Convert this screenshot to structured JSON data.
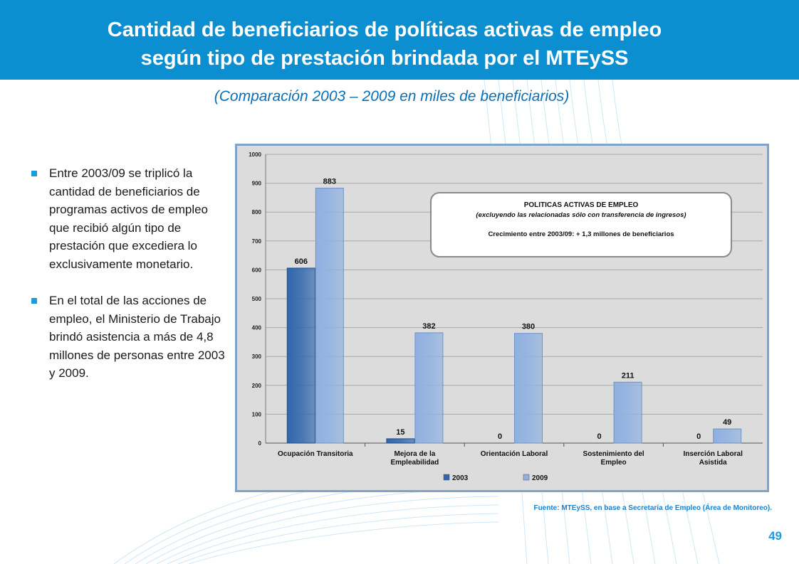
{
  "slide": {
    "title_line1": "Cantidad de beneficiarios de políticas activas de empleo",
    "title_line2": "según tipo de prestación brindada por el MTEySS",
    "subtitle": "(Comparación 2003 – 2009 en miles de beneficiarios)",
    "bullets": [
      "Entre 2003/09 se triplicó la cantidad de beneficiarios de programas activos de empleo que recibió algún tipo de prestación que excediera lo exclusivamente monetario.",
      "En el total de las acciones de empleo, el Ministerio de Trabajo brindó asistencia a más de 4,8 millones de personas entre 2003 y 2009."
    ],
    "source": "Fuente: MTEySS, en base a Secretaría de Empleo (Área de Monitoreo).",
    "page_number": "49",
    "colors": {
      "header": "#0b8fd1",
      "accent": "#1a9ce0",
      "series_2003": "#2f66ad",
      "series_2009": "#8fb0e0"
    }
  },
  "chart_data": {
    "type": "bar",
    "title": "",
    "xlabel": "",
    "ylabel": "",
    "categories": [
      [
        "Ocupación Transitoria"
      ],
      [
        "Mejora de la",
        "Empleabilidad"
      ],
      [
        "Orientación Laboral"
      ],
      [
        "Sostenimiento del",
        "Empleo"
      ],
      [
        "Inserción Laboral",
        "Asistida"
      ]
    ],
    "series": [
      {
        "name": "2003",
        "values": [
          606,
          15,
          0,
          0,
          0
        ],
        "color": "#2f66ad"
      },
      {
        "name": "2009",
        "values": [
          883,
          382,
          380,
          211,
          49
        ],
        "color": "#8fb0e0"
      }
    ],
    "ylim": [
      0,
      1000
    ],
    "yticks": [
      0,
      100,
      200,
      300,
      400,
      500,
      600,
      700,
      800,
      900,
      1000
    ],
    "grid": true,
    "legend": "bottom",
    "annotation": {
      "line1": "POLITICAS ACTIVAS DE EMPLEO",
      "line2": "(excluyendo las relacionadas sólo con transferencia de ingresos)",
      "line3": "Crecimiento entre 2003/09:  + 1,3 millones de beneficiarios"
    }
  }
}
